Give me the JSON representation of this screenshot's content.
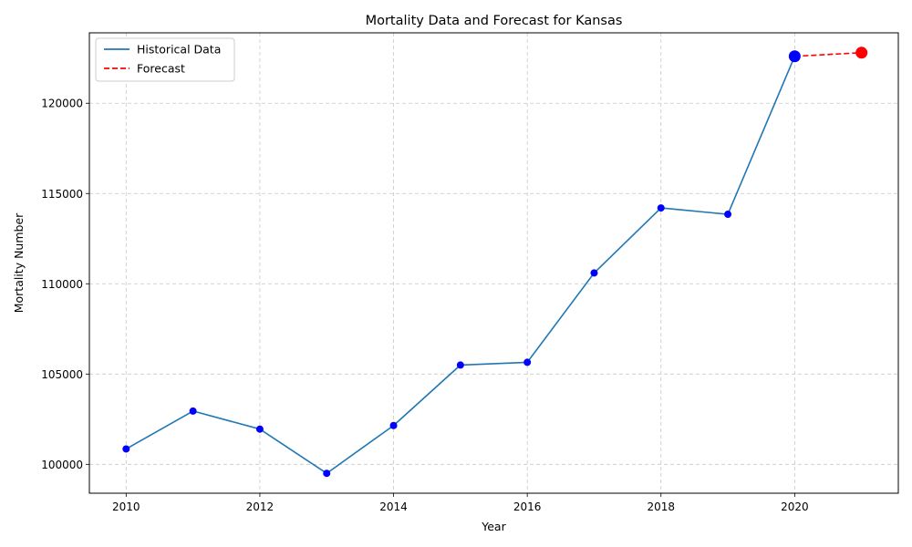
{
  "chart_data": {
    "type": "line",
    "title": "Mortality Data and Forecast for Kansas",
    "xlabel": "Year",
    "ylabel": "Mortality Number",
    "xlim": [
      2009.45,
      2021.55
    ],
    "ylim": [
      98400,
      123900
    ],
    "x_ticks": [
      2010,
      2012,
      2014,
      2016,
      2018,
      2020
    ],
    "y_ticks": [
      100000,
      105000,
      110000,
      115000,
      120000
    ],
    "grid": true,
    "legend_position": "top-left",
    "series": [
      {
        "name": "Historical Data",
        "style": "solid",
        "color": "#1f77b4",
        "marker_color": "#0000ff",
        "x": [
          2010,
          2011,
          2012,
          2013,
          2014,
          2015,
          2016,
          2017,
          2018,
          2019,
          2020
        ],
        "y": [
          100850,
          102950,
          101950,
          99500,
          102150,
          105500,
          105650,
          110600,
          114200,
          113850,
          122600
        ]
      },
      {
        "name": "Forecast",
        "style": "dashed",
        "color": "#ff0000",
        "x": [
          2020,
          2021
        ],
        "y": [
          122600,
          122800
        ]
      }
    ],
    "highlight_points": [
      {
        "x": 2020,
        "y": 122600,
        "color": "#0000ff"
      },
      {
        "x": 2021,
        "y": 122800,
        "color": "#ff0000"
      }
    ]
  }
}
